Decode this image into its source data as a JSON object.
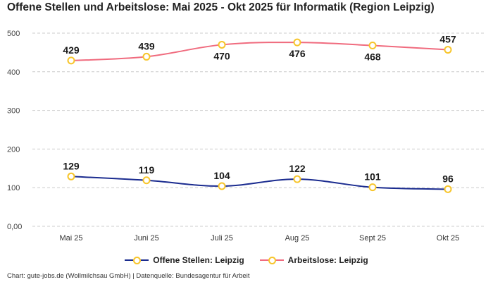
{
  "colors": {
    "offene": "#1a2b8f",
    "arbeitslose": "#f06b7e",
    "marker": "#f7c52b",
    "grid": "#cccccc"
  },
  "chart_data": {
    "type": "line",
    "title": "Offene Stellen und Arbeitslose: Mai 2025 - Okt 2025 für Informatik (Region Leipzig)",
    "categories": [
      "Mai 25",
      "Juni 25",
      "Juli 25",
      "Aug 25",
      "Sept 25",
      "Okt 25"
    ],
    "yticks": [
      "0,00",
      "100",
      "200",
      "300",
      "400",
      "500"
    ],
    "ylim": [
      0,
      500
    ],
    "grid": true,
    "legend_position": "bottom",
    "series": [
      {
        "name": "Offene Stellen: Leipzig",
        "values": [
          129,
          119,
          104,
          122,
          101,
          96
        ],
        "labels": [
          "129",
          "119",
          "104",
          "122",
          "101",
          "96"
        ],
        "color": "#1a2b8f"
      },
      {
        "name": "Arbeitslose: Leipzig",
        "values": [
          429,
          439,
          470,
          476,
          468,
          457
        ],
        "labels": [
          "429",
          "439",
          "470",
          "476",
          "468",
          "457"
        ],
        "color": "#f06b7e"
      }
    ],
    "source": "Chart: gute-jobs.de (Wollmilchsau GmbH) | Datenquelle: Bundesagentur für Arbeit"
  }
}
